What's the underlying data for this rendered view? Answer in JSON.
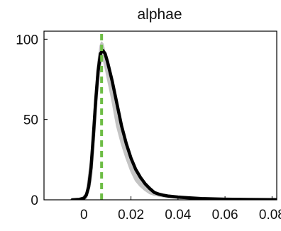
{
  "chart_data": {
    "type": "line",
    "title": "alphae",
    "xlabel": "",
    "ylabel": "",
    "xlim": [
      -0.017,
      0.082
    ],
    "ylim": [
      0,
      105
    ],
    "xticks": [
      0,
      0.02,
      0.04,
      0.06,
      0.08
    ],
    "xtick_labels": [
      "0",
      "0.02",
      "0.04",
      "0.06",
      "0.08"
    ],
    "yticks": [
      0,
      50,
      100
    ],
    "ytick_labels": [
      "0",
      "50",
      "100"
    ],
    "grid": false,
    "legend": "none",
    "colors": {
      "main": "#000000",
      "band": "#c4c4c4",
      "reference": "#6dbd45",
      "axis": "#000000"
    },
    "series": [
      {
        "style": "band",
        "x": [
          -0.005,
          -0.001,
          0.001,
          0.003,
          0.004,
          0.005,
          0.006,
          0.007,
          0.0075,
          0.008,
          0.0085,
          0.009,
          0.01,
          0.011,
          0.012,
          0.013,
          0.014,
          0.016,
          0.018,
          0.02,
          0.022,
          0.024,
          0.026,
          0.028,
          0.03,
          0.034,
          0.038,
          0.042,
          0.05,
          0.06,
          0.07,
          0.082
        ],
        "upper": [
          0,
          0.6,
          4,
          25,
          45,
          68,
          86,
          96,
          98,
          97,
          94,
          90,
          82,
          75,
          68,
          60,
          52,
          40,
          30,
          22,
          16,
          11,
          8,
          6,
          4.5,
          3,
          2.2,
          1.6,
          0.9,
          0.5,
          0.3,
          0.2
        ],
        "lower": [
          0,
          0.1,
          1,
          12,
          30,
          52,
          72,
          84,
          87,
          88,
          86,
          83,
          76,
          69,
          62,
          54,
          46,
          35,
          26,
          18,
          12,
          8.5,
          6,
          4,
          3,
          2,
          1.4,
          1,
          0.5,
          0.3,
          0.1,
          0
        ]
      },
      {
        "style": "line",
        "x": [
          -0.005,
          -0.002,
          0,
          0.001,
          0.002,
          0.003,
          0.004,
          0.005,
          0.006,
          0.007,
          0.008,
          0.009,
          0.01,
          0.011,
          0.012,
          0.013,
          0.014,
          0.015,
          0.016,
          0.018,
          0.02,
          0.022,
          0.024,
          0.026,
          0.028,
          0.03,
          0.032,
          0.034,
          0.036,
          0.04,
          0.045,
          0.05,
          0.06,
          0.07,
          0.082
        ],
        "y": [
          0,
          0.3,
          1,
          3,
          8,
          20,
          40,
          62,
          80,
          91,
          93,
          91,
          86,
          80,
          74,
          67,
          60,
          53,
          46,
          35,
          26,
          19,
          14,
          10,
          7,
          4.5,
          3.5,
          2.8,
          2.3,
          1.7,
          1.2,
          0.8,
          0.4,
          0.2,
          0.1
        ]
      },
      {
        "style": "reference-line",
        "x": [
          0.0075,
          0.0075
        ],
        "y": [
          0,
          105
        ]
      }
    ]
  }
}
